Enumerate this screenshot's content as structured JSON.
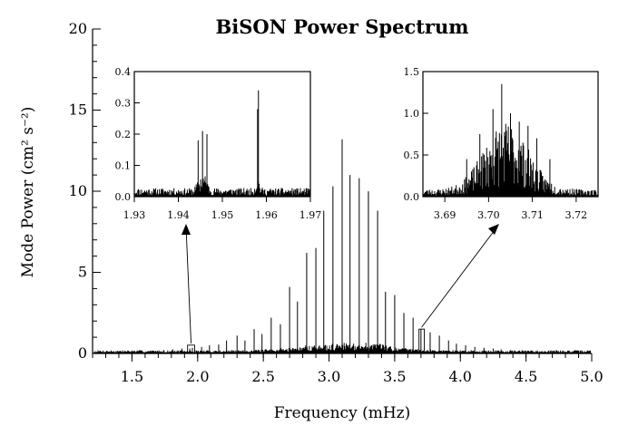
{
  "chart_data": [
    {
      "id": "main",
      "type": "line",
      "title": "BiSON Power Spectrum",
      "xlabel": "Frequency (mHz)",
      "ylabel": "Mode Power (cm² s⁻²)",
      "xlim": [
        1.2,
        5.0
      ],
      "ylim": [
        0,
        20
      ],
      "xticks": [
        1.5,
        2.0,
        2.5,
        3.0,
        3.5,
        4.0,
        4.5,
        5.0
      ],
      "yticks": [
        0,
        5,
        10,
        15,
        20
      ],
      "xtick_labels": [
        "1.5",
        "2.0",
        "2.5",
        "3.0",
        "3.5",
        "4.0",
        "4.5",
        "5.0"
      ],
      "ytick_labels": [
        "0",
        "5",
        "10",
        "15",
        "20"
      ],
      "grid": false,
      "series": [
        {
          "x": [
            1.68,
            1.74,
            1.81,
            1.88,
            1.94,
            1.96,
            2.03,
            2.09,
            2.16,
            2.22,
            2.3,
            2.36,
            2.43,
            2.49,
            2.56,
            2.63,
            2.7,
            2.76,
            2.83,
            2.9,
            2.96,
            3.03,
            3.1,
            3.16,
            3.23,
            3.3,
            3.37,
            3.43,
            3.5,
            3.57,
            3.64,
            3.7,
            3.77,
            3.84,
            3.91,
            3.97,
            4.04,
            4.11,
            4.18,
            4.25,
            4.31,
            4.38,
            4.45,
            4.52
          ],
          "y": [
            0.15,
            0.2,
            0.25,
            0.3,
            0.3,
            0.35,
            0.4,
            0.5,
            0.55,
            0.8,
            1.1,
            0.8,
            1.5,
            1.2,
            2.2,
            1.8,
            4.1,
            3.2,
            6.2,
            6.5,
            8.8,
            10.3,
            13.2,
            11.0,
            10.8,
            10.0,
            8.8,
            3.8,
            3.6,
            2.5,
            2.2,
            1.5,
            1.3,
            1.1,
            0.8,
            0.6,
            0.5,
            0.4,
            0.35,
            0.3,
            0.25,
            0.2,
            0.18,
            0.15
          ]
        }
      ]
    },
    {
      "id": "inset-left",
      "type": "line",
      "xlim": [
        1.93,
        1.97
      ],
      "ylim": [
        0.0,
        0.4
      ],
      "xticks": [
        1.93,
        1.94,
        1.95,
        1.96,
        1.97
      ],
      "yticks": [
        0.0,
        0.1,
        0.2,
        0.3,
        0.4
      ],
      "xtick_labels": [
        "1.93",
        "1.94",
        "1.95",
        "1.96",
        "1.97"
      ],
      "ytick_labels": [
        "0.0",
        "0.1",
        "0.2",
        "0.3",
        "0.4"
      ],
      "series": [
        {
          "x": [
            1.9445,
            1.9455,
            1.9465,
            1.958,
            1.9582
          ],
          "y": [
            0.18,
            0.21,
            0.2,
            0.28,
            0.34
          ]
        }
      ]
    },
    {
      "id": "inset-right",
      "type": "line",
      "xlim": [
        3.685,
        3.725
      ],
      "ylim": [
        0.0,
        1.5
      ],
      "xticks": [
        3.69,
        3.7,
        3.71,
        3.72
      ],
      "yticks": [
        0.0,
        0.5,
        1.0,
        1.5
      ],
      "xtick_labels": [
        "3.69",
        "3.70",
        "3.71",
        "3.72"
      ],
      "ytick_labels": [
        "0.0",
        "0.5",
        "1.0",
        "1.5"
      ],
      "series": [
        {
          "x": [
            3.695,
            3.698,
            3.701,
            3.703,
            3.705,
            3.707,
            3.709,
            3.711,
            3.714
          ],
          "y": [
            0.45,
            0.75,
            1.05,
            1.35,
            1.0,
            0.9,
            0.85,
            0.7,
            0.45
          ]
        }
      ]
    }
  ]
}
